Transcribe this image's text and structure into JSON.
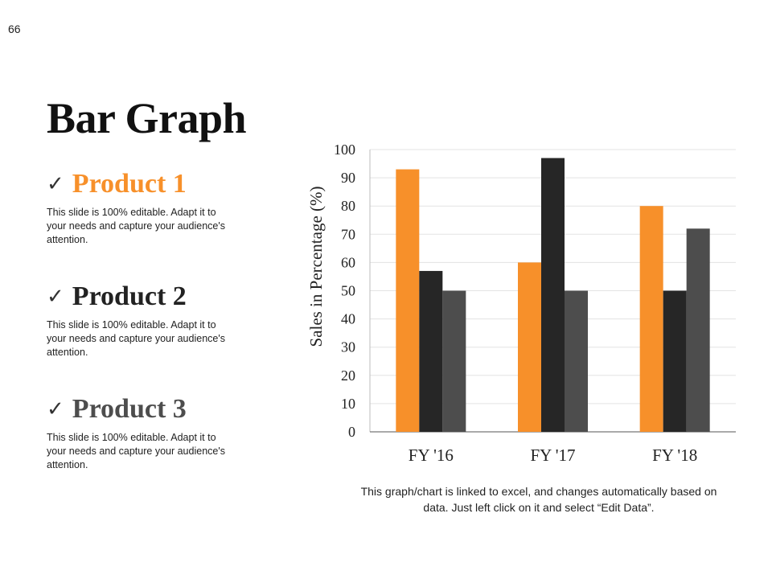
{
  "page_number": "66",
  "title": "Bar Graph",
  "products": [
    {
      "name": "Product 1",
      "desc": "This slide is 100% editable. Adapt it to your needs and capture your audience's attention.",
      "color": "#f7902a"
    },
    {
      "name": "Product 2",
      "desc": "This slide is 100% editable. Adapt it to your needs and capture your audience's attention.",
      "color": "#222222"
    },
    {
      "name": "Product 3",
      "desc": "This slide is 100% editable. Adapt it to your needs and capture your audience's attention.",
      "color": "#4d4d4d"
    }
  ],
  "check_glyph": "✓",
  "note": "This graph/chart is linked to excel, and changes automatically based on data. Just left click on it and select “Edit Data”.",
  "chart_data": {
    "type": "bar",
    "categories": [
      "FY '16",
      "FY '17",
      "FY '18"
    ],
    "series": [
      {
        "name": "Product 1",
        "values": [
          93,
          60,
          80
        ],
        "color": "#f7902a"
      },
      {
        "name": "Product 2",
        "values": [
          57,
          97,
          50
        ],
        "color": "#262626"
      },
      {
        "name": "Product 3",
        "values": [
          50,
          50,
          72
        ],
        "color": "#4d4d4d"
      }
    ],
    "ylabel": "Sales in Percentage (%)",
    "xlabel": "",
    "ylim": [
      0,
      100
    ],
    "yticks": [
      0,
      10,
      20,
      30,
      40,
      50,
      60,
      70,
      80,
      90,
      100
    ],
    "grid": true,
    "legend": "none"
  }
}
